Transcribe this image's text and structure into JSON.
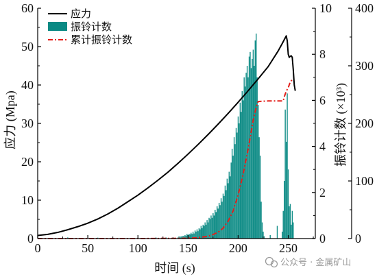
{
  "chart_data": {
    "type": "line",
    "title": "",
    "xlabel": "时间 (s)",
    "ylabel": "应力 (Mpa)",
    "y2label": "振铃计数 (×10³)",
    "xlim": [
      0,
      277
    ],
    "ylim": [
      0,
      60
    ],
    "y2lim": [
      0,
      10
    ],
    "y3lim": [
      0,
      400
    ],
    "xticks": [
      0,
      50,
      100,
      150,
      200,
      250
    ],
    "yticks": [
      0,
      10,
      20,
      30,
      40,
      50,
      60
    ],
    "y2ticks": [
      0,
      2,
      4,
      6,
      8,
      10
    ],
    "y3ticks": [
      0,
      100,
      200,
      300,
      400
    ],
    "grid": false,
    "legend_position": "top-left",
    "series": [
      {
        "name": "应力",
        "type": "line",
        "axis": "y",
        "color": "#000000",
        "x": [
          0,
          10,
          20,
          30,
          40,
          50,
          60,
          70,
          80,
          90,
          100,
          110,
          120,
          130,
          140,
          150,
          160,
          170,
          180,
          190,
          200,
          210,
          220,
          230,
          240,
          244,
          247,
          248,
          249,
          250,
          251,
          252,
          253,
          254,
          255,
          256,
          257
        ],
        "y": [
          0.8,
          1.1,
          1.6,
          2.3,
          3.1,
          4.0,
          5.1,
          6.4,
          7.9,
          9.6,
          11.3,
          13.2,
          15.2,
          17.3,
          19.6,
          22.0,
          24.5,
          27.1,
          29.8,
          32.6,
          35.5,
          38.5,
          41.6,
          44.8,
          48.9,
          50.8,
          52.3,
          52.8,
          51.5,
          48.0,
          47.2,
          47.5,
          47.6,
          47.2,
          44.0,
          40.0,
          38.5
        ]
      },
      {
        "name": "振铃计数",
        "type": "bar",
        "axis": "y2",
        "color": "#0a8a84",
        "x": [
          30,
          45,
          60,
          85,
          100,
          118,
          128,
          135,
          140,
          141,
          142,
          143,
          144,
          145,
          146,
          147,
          148,
          149,
          150,
          151,
          152,
          153,
          154,
          155,
          156,
          157,
          158,
          159,
          160,
          161,
          162,
          163,
          164,
          165,
          166,
          167,
          168,
          169,
          170,
          171,
          172,
          173,
          174,
          175,
          176,
          177,
          178,
          179,
          180,
          181,
          182,
          183,
          184,
          185,
          186,
          187,
          188,
          189,
          190,
          191,
          192,
          193,
          194,
          195,
          196,
          197,
          198,
          199,
          200,
          201,
          202,
          203,
          204,
          205,
          206,
          207,
          208,
          209,
          210,
          211,
          212,
          213,
          214,
          215,
          216,
          217,
          218,
          219,
          220,
          221,
          222,
          223,
          224,
          225,
          226,
          232,
          239,
          244,
          245,
          246,
          247,
          248,
          249,
          250,
          251,
          252,
          253,
          254,
          255
        ],
        "y": [
          0.05,
          0.03,
          0.04,
          0.03,
          0.04,
          0.05,
          0.05,
          0.06,
          0.05,
          0.1,
          0.05,
          0.1,
          0.08,
          0.12,
          0.1,
          0.15,
          0.12,
          0.2,
          0.15,
          0.2,
          0.18,
          0.25,
          0.2,
          0.3,
          0.22,
          0.35,
          0.3,
          0.4,
          0.32,
          0.45,
          0.4,
          0.55,
          0.45,
          0.6,
          0.55,
          0.7,
          0.6,
          0.8,
          0.7,
          0.9,
          0.85,
          1.0,
          0.9,
          1.1,
          1.0,
          1.25,
          1.15,
          1.4,
          1.3,
          1.55,
          1.45,
          1.75,
          1.6,
          1.95,
          1.85,
          2.3,
          2.1,
          2.6,
          2.4,
          2.9,
          2.7,
          3.3,
          3.9,
          3.6,
          4.4,
          4.1,
          4.8,
          4.6,
          5.3,
          5.0,
          5.9,
          5.5,
          6.4,
          6.0,
          7.0,
          6.6,
          7.2,
          7.5,
          7.0,
          7.9,
          8.1,
          7.4,
          7.8,
          8.2,
          7.5,
          8.6,
          8.9,
          7.0,
          5.8,
          4.4,
          3.6,
          1.6,
          0.7,
          0.3,
          0.1,
          0.15,
          0.55,
          0.3,
          1.2,
          2.5,
          5.6,
          4.2,
          6.3,
          3.0,
          1.4,
          1.5,
          0.6,
          1.2,
          0.7
        ]
      },
      {
        "name": "累计振铃计数",
        "type": "line",
        "style": "dash-dot",
        "axis": "y3",
        "color": "#e3201b",
        "x": [
          0,
          100,
          150,
          160,
          170,
          175,
          180,
          185,
          190,
          195,
          200,
          205,
          210,
          215,
          218,
          220,
          230,
          245,
          246,
          248,
          250,
          252,
          254
        ],
        "y": [
          0,
          0,
          0.5,
          1.5,
          4,
          7,
          11,
          18,
          30,
          48,
          75,
          112,
          155,
          205,
          228,
          238,
          239,
          239,
          246,
          256,
          262,
          272,
          276
        ]
      }
    ]
  },
  "watermark": {
    "icon": "wechat-icon",
    "text": "公众号 · 金属矿山"
  }
}
